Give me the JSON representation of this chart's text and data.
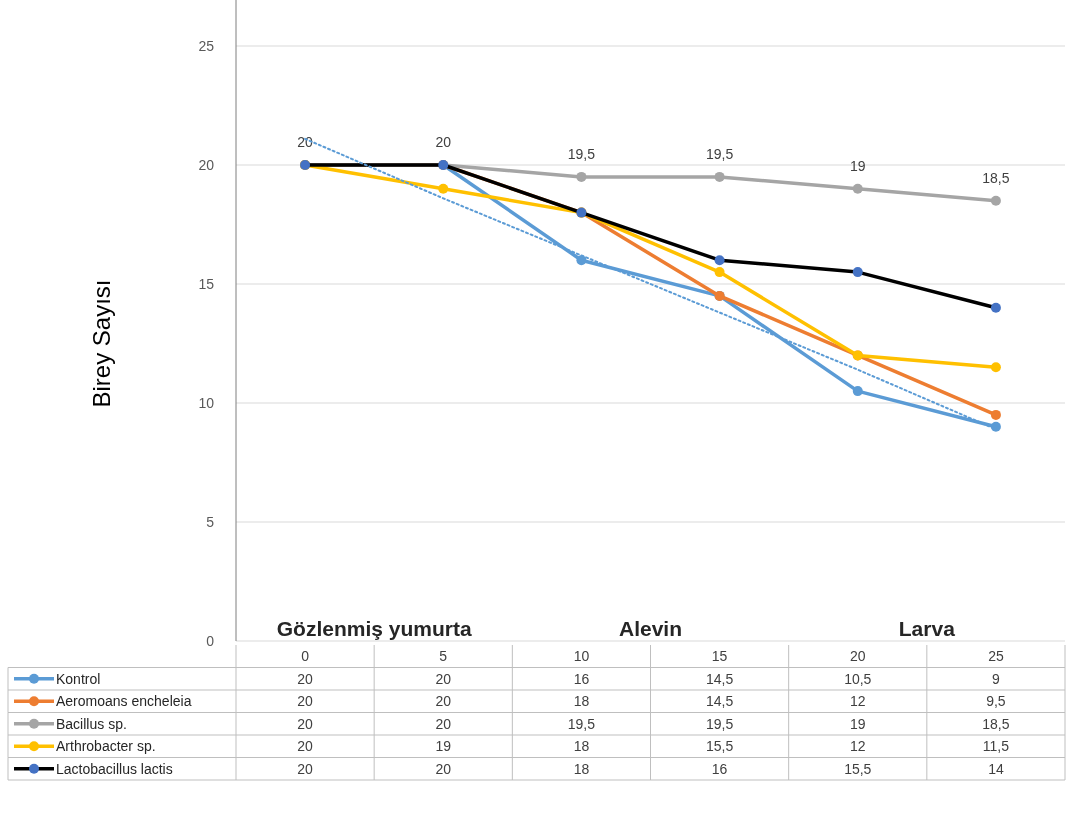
{
  "chart_data": {
    "type": "line",
    "ylabel": "Birey Sayısı",
    "categories": [
      "0",
      "5",
      "10",
      "15",
      "20",
      "25"
    ],
    "ylim": [
      0,
      25
    ],
    "yticks": [
      0,
      5,
      10,
      15,
      20,
      25
    ],
    "grid": "y",
    "legend": "bottom",
    "marker": "circle",
    "line_style": "solid",
    "annotations": [
      "Gözlenmiş yumurta",
      "Alevin",
      "Larva"
    ],
    "series": [
      {
        "name": "Kontrol",
        "color": "#5b9bd5",
        "values": [
          20,
          20,
          16,
          14.5,
          10.5,
          9
        ],
        "value_labels": [
          "20",
          "20",
          "16",
          "14,5",
          "10,5",
          "9"
        ]
      },
      {
        "name": "Aeromoans encheleia",
        "color": "#ed7d31",
        "values": [
          20,
          20,
          18,
          14.5,
          12,
          9.5
        ],
        "value_labels": [
          "20",
          "20",
          "18",
          "14,5",
          "12",
          "9,5"
        ]
      },
      {
        "name": "Bacillus sp.",
        "color": "#a5a5a5",
        "values": [
          20,
          20,
          19.5,
          19.5,
          19,
          18.5
        ],
        "value_labels": [
          "20",
          "20",
          "19,5",
          "19,5",
          "19",
          "18,5"
        ],
        "data_labels": true
      },
      {
        "name": "Arthrobacter sp.",
        "color": "#ffc000",
        "values": [
          20,
          19,
          18,
          15.5,
          12,
          11.5
        ],
        "value_labels": [
          "20",
          "19",
          "18",
          "15,5",
          "12",
          "11,5"
        ]
      },
      {
        "name": "Lactobacillus lactis",
        "color": "#000000",
        "values": [
          20,
          20,
          18,
          16,
          15.5,
          14
        ],
        "value_labels": [
          "20",
          "20",
          "18",
          "16",
          "15,5",
          "14"
        ]
      },
      {
        "type": "line",
        "color": "#5b9bd5",
        "values": [
          21.1,
          18.6,
          16.2,
          13.8,
          11.4,
          8.9
        ],
        "marker": "none",
        "line_style": "dotted"
      }
    ]
  }
}
